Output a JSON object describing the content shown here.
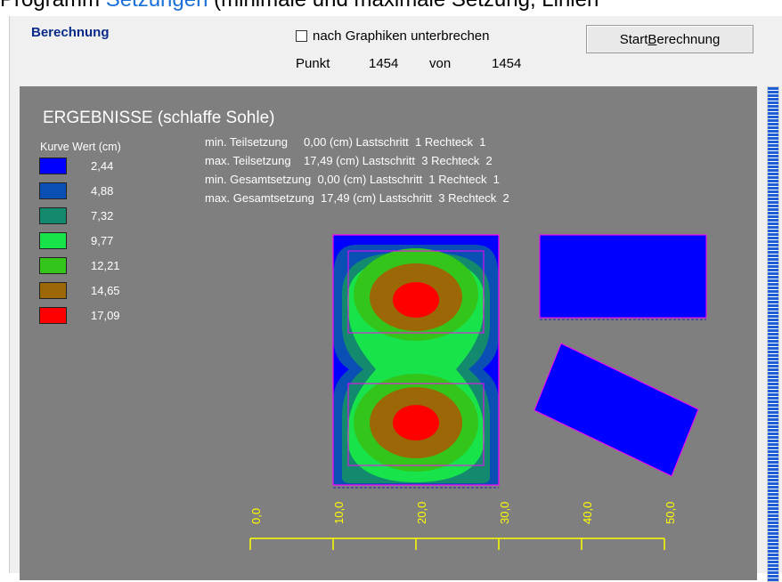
{
  "caption": {
    "prefix": "Programm ",
    "link": "Setzungen",
    "rest": " (minimale und maximale Setzung, Linien"
  },
  "group_title": "Berechnung",
  "checkbox_label": "nach Graphiken unterbrechen",
  "progress": {
    "label": "Punkt",
    "current": "1454",
    "sep": "von",
    "total": "1454"
  },
  "button": {
    "prefix": "Start ",
    "accel": "B",
    "rest": "erechnung"
  },
  "plot": {
    "title": "ERGEBNISSE (schlaffe Sohle)",
    "legend_header": "Kurve  Wert (cm)",
    "legend": [
      {
        "value": "2,44",
        "color": "#0000ff"
      },
      {
        "value": "4,88",
        "color": "#0a50b4"
      },
      {
        "value": "7,32",
        "color": "#138a6e"
      },
      {
        "value": "9,77",
        "color": "#18e34a"
      },
      {
        "value": "12,21",
        "color": "#34c51a"
      },
      {
        "value": "14,65",
        "color": "#9c6706"
      },
      {
        "value": "17,09",
        "color": "#ff0000"
      }
    ],
    "info": [
      "min. Teilsetzung     0,00 (cm) Lastschritt  1 Rechteck  1",
      "max. Teilsetzung    17,49 (cm) Lastschritt  3 Rechteck  2",
      "min. Gesamtsetzung  0,00 (cm) Lastschritt  1 Rechteck  1",
      "max. Gesamtsetzung  17,49 (cm) Lastschritt  3 Rechteck  2"
    ],
    "scale_ticks": [
      "0,0",
      "10,0",
      "20,0",
      "30,0",
      "40,0",
      "50,0"
    ],
    "colors": {
      "background": "#7f7f7f",
      "rect_fill": "#0000ff",
      "outline": "#ff00ff",
      "scale": "#ffff00"
    }
  }
}
